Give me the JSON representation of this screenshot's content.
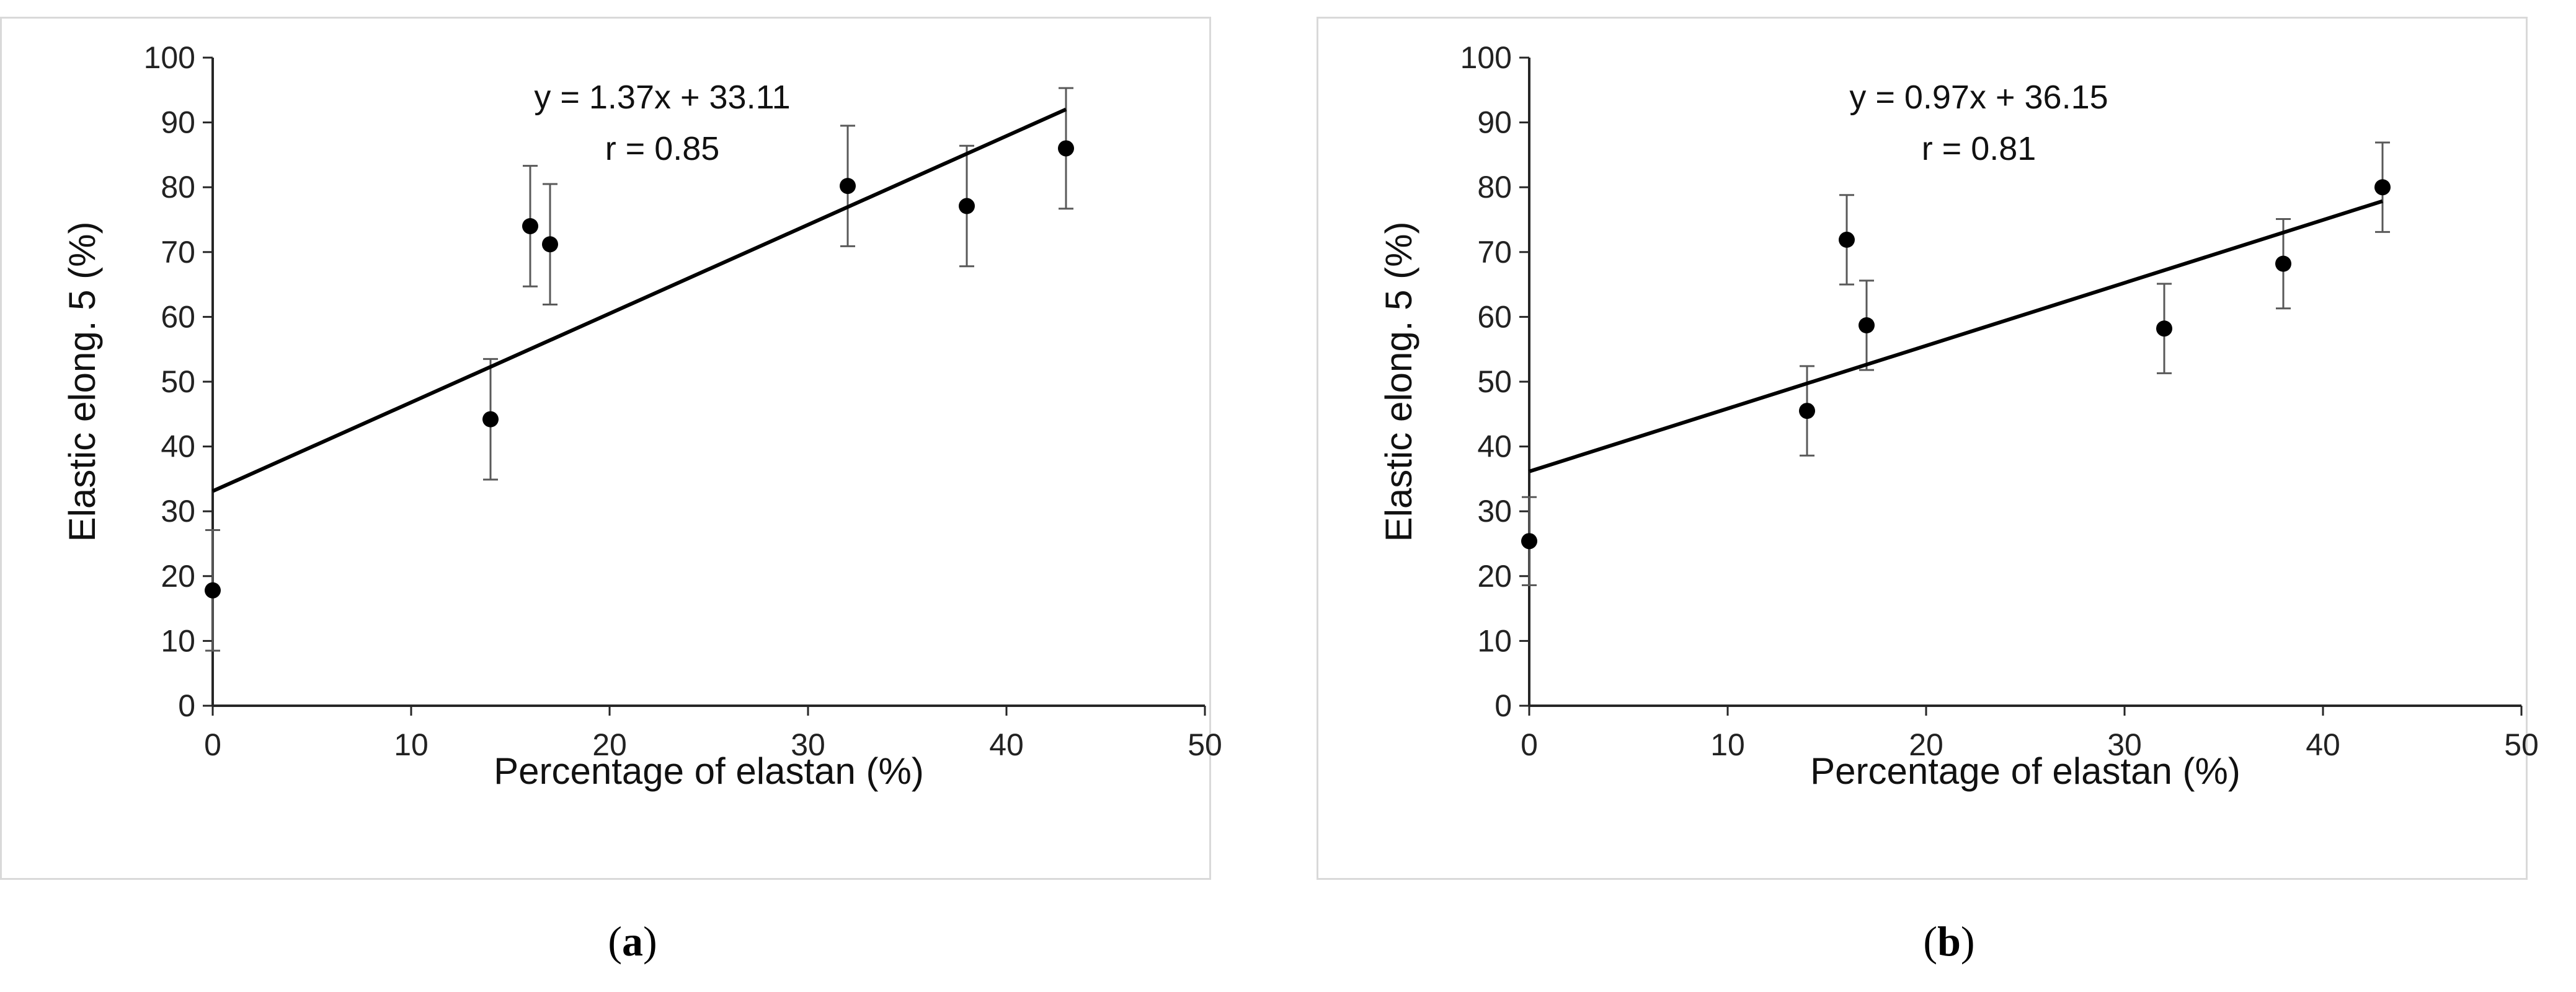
{
  "chart_data": [
    {
      "type": "scatter",
      "panel_label": "a",
      "xlabel": "Percentage of elastan (%)",
      "ylabel": "Elastic elong. 5 (%)",
      "xlim": [
        0,
        50
      ],
      "ylim": [
        0,
        100
      ],
      "xticks": [
        0,
        10,
        20,
        30,
        40,
        50
      ],
      "yticks": [
        0,
        10,
        20,
        30,
        40,
        50,
        60,
        70,
        80,
        90,
        100
      ],
      "grid": false,
      "points": [
        {
          "x": 0,
          "y": 17.8,
          "err": 9.3
        },
        {
          "x": 14,
          "y": 44.2,
          "err": 9.3
        },
        {
          "x": 16,
          "y": 74.0,
          "err": 9.3
        },
        {
          "x": 17,
          "y": 71.2,
          "err": 9.3
        },
        {
          "x": 32,
          "y": 80.2,
          "err": 9.3
        },
        {
          "x": 38,
          "y": 77.1,
          "err": 9.3
        },
        {
          "x": 43,
          "y": 86.0,
          "err": 9.3
        }
      ],
      "trendline": {
        "slope": 1.37,
        "intercept": 33.11,
        "x_range": [
          0,
          43
        ]
      },
      "equation": "y = 1.37x + 33.11",
      "r_label": "r = 0.85"
    },
    {
      "type": "scatter",
      "panel_label": "b",
      "xlabel": "Percentage of elastan (%)",
      "ylabel": "Elastic elong. 5 (%)",
      "xlim": [
        0,
        50
      ],
      "ylim": [
        0,
        100
      ],
      "xticks": [
        0,
        10,
        20,
        30,
        40,
        50
      ],
      "yticks": [
        0,
        10,
        20,
        30,
        40,
        50,
        60,
        70,
        80,
        90,
        100
      ],
      "grid": false,
      "points": [
        {
          "x": 0,
          "y": 25.4,
          "err": 6.8
        },
        {
          "x": 14,
          "y": 45.5,
          "err": 6.9
        },
        {
          "x": 16,
          "y": 71.9,
          "err": 6.9
        },
        {
          "x": 17,
          "y": 58.7,
          "err": 6.9
        },
        {
          "x": 32,
          "y": 58.2,
          "err": 6.9
        },
        {
          "x": 38,
          "y": 68.2,
          "err": 6.9
        },
        {
          "x": 43,
          "y": 80.0,
          "err": 6.9
        }
      ],
      "trendline": {
        "slope": 0.97,
        "intercept": 36.15,
        "x_range": [
          0,
          43
        ]
      },
      "equation": "y = 0.97x + 36.15",
      "r_label": "r = 0.81"
    }
  ],
  "colors": {
    "marker": "#000000",
    "trendline": "#000000",
    "errorbar": "#595959",
    "axis": "#262626",
    "border": "#d9d9d9"
  }
}
